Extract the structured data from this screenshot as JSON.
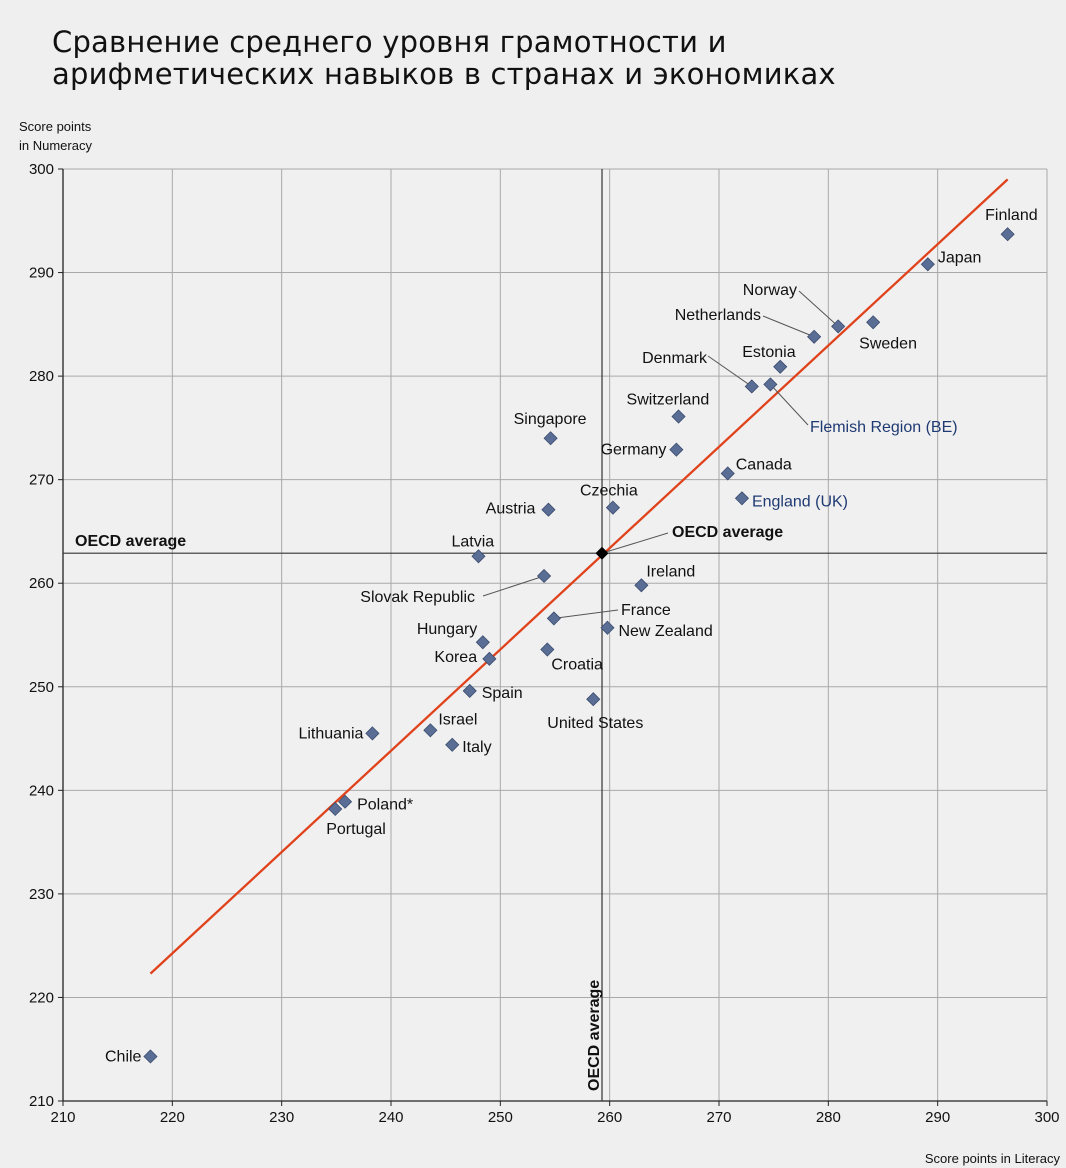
{
  "title_lines": [
    "Сравнение среднего уровня грамотности и",
    "арифметических навыков в странах и экономиках"
  ],
  "chart_data": {
    "type": "scatter",
    "title": "Сравнение среднего уровня грамотности и арифметических навыков в странах и экономиках",
    "xlabel": "Score points in Literacy",
    "ylabel_lines": [
      "Score points",
      "in Numeracy"
    ],
    "xlim": [
      210,
      300
    ],
    "ylim": [
      210,
      300
    ],
    "xticks": [
      "210",
      "220",
      "230",
      "240",
      "250",
      "260",
      "270",
      "280",
      "290",
      "300"
    ],
    "yticks": [
      "210",
      "220",
      "230",
      "240",
      "250",
      "260",
      "270",
      "280",
      "290",
      "300"
    ],
    "grid": true,
    "point_color": "#5a6e95",
    "trend_color": "#e0421b",
    "trendline": [
      [
        218,
        222.3
      ],
      [
        296.4,
        299
      ]
    ],
    "oecd_average": {
      "x": 259.3,
      "y": 262.9,
      "label": "OECD average",
      "line_label": "OECD average"
    },
    "points": [
      {
        "name": "Finland",
        "x": 296.4,
        "y": 293.7
      },
      {
        "name": "Japan",
        "x": 289.1,
        "y": 290.8
      },
      {
        "name": "Norway",
        "x": 280.9,
        "y": 284.8
      },
      {
        "name": "Netherlands",
        "x": 278.7,
        "y": 283.8
      },
      {
        "name": "Sweden",
        "x": 284.1,
        "y": 285.2
      },
      {
        "name": "Estonia",
        "x": 275.6,
        "y": 280.9
      },
      {
        "name": "Denmark",
        "x": 273.0,
        "y": 279.0
      },
      {
        "name": "Flemish Region (BE)",
        "x": 274.7,
        "y": 279.2
      },
      {
        "name": "Switzerland",
        "x": 266.3,
        "y": 276.1
      },
      {
        "name": "Singapore",
        "x": 254.6,
        "y": 274.0
      },
      {
        "name": "Germany",
        "x": 266.1,
        "y": 272.9
      },
      {
        "name": "Canada",
        "x": 270.8,
        "y": 270.6
      },
      {
        "name": "England (UK)",
        "x": 272.1,
        "y": 268.2
      },
      {
        "name": "Czechia",
        "x": 260.3,
        "y": 267.3
      },
      {
        "name": "Austria",
        "x": 254.4,
        "y": 267.1
      },
      {
        "name": "Latvia",
        "x": 248.0,
        "y": 262.6
      },
      {
        "name": "Slovak Republic",
        "x": 254.0,
        "y": 260.7
      },
      {
        "name": "Ireland",
        "x": 262.9,
        "y": 259.8
      },
      {
        "name": "France",
        "x": 254.9,
        "y": 256.6
      },
      {
        "name": "New Zealand",
        "x": 259.8,
        "y": 255.7
      },
      {
        "name": "Hungary",
        "x": 248.4,
        "y": 254.3
      },
      {
        "name": "Korea",
        "x": 249.0,
        "y": 252.7
      },
      {
        "name": "Croatia",
        "x": 254.3,
        "y": 253.6
      },
      {
        "name": "Spain",
        "x": 247.2,
        "y": 249.6
      },
      {
        "name": "United States",
        "x": 258.5,
        "y": 248.8
      },
      {
        "name": "Lithuania",
        "x": 238.3,
        "y": 245.5
      },
      {
        "name": "Israel",
        "x": 243.6,
        "y": 245.8
      },
      {
        "name": "Italy",
        "x": 245.6,
        "y": 244.4
      },
      {
        "name": "Poland*",
        "x": 235.8,
        "y": 238.9
      },
      {
        "name": "Portugal",
        "x": 234.9,
        "y": 238.2
      },
      {
        "name": "Chile",
        "x": 218.0,
        "y": 214.3
      }
    ]
  }
}
